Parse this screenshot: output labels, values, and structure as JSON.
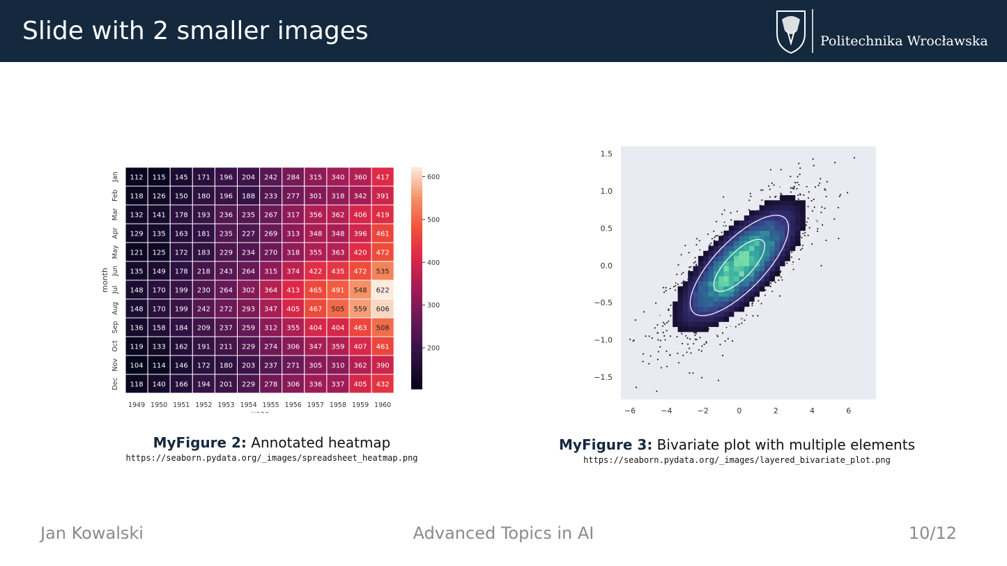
{
  "slide": {
    "title": "Slide with 2 smaller images"
  },
  "logo": {
    "text": "Politechnika Wrocławska"
  },
  "figure2": {
    "caption_label": "MyFigure 2:",
    "caption_text": " Annotated heatmap",
    "url": "https://seaborn.pydata.org/_images/spreadsheet_heatmap.png"
  },
  "figure3": {
    "caption_label": "MyFigure 3:",
    "caption_text": " Bivariate plot with multiple elements",
    "url": "https://seaborn.pydata.org/_images/layered_bivariate_plot.png"
  },
  "footer": {
    "author": "Jan Kowalski",
    "course": "Advanced Topics in AI",
    "page": "10/12"
  },
  "colors": {
    "header_bg": "#14293e",
    "caption_accent": "#14293e"
  },
  "chart_data": [
    {
      "type": "heatmap",
      "xlabel": "year",
      "ylabel": "month",
      "x": [
        "1949",
        "1950",
        "1951",
        "1952",
        "1953",
        "1954",
        "1955",
        "1956",
        "1957",
        "1958",
        "1959",
        "1960"
      ],
      "y": [
        "Jan",
        "Feb",
        "Mar",
        "Apr",
        "May",
        "Jun",
        "Jul",
        "Aug",
        "Sep",
        "Oct",
        "Nov",
        "Dec"
      ],
      "values": [
        [
          112,
          115,
          145,
          171,
          196,
          204,
          242,
          284,
          315,
          340,
          360,
          417
        ],
        [
          118,
          126,
          150,
          180,
          196,
          188,
          233,
          277,
          301,
          318,
          342,
          391
        ],
        [
          132,
          141,
          178,
          193,
          236,
          235,
          267,
          317,
          356,
          362,
          406,
          419
        ],
        [
          129,
          135,
          163,
          181,
          235,
          227,
          269,
          313,
          348,
          348,
          396,
          461
        ],
        [
          121,
          125,
          172,
          183,
          229,
          234,
          270,
          318,
          355,
          363,
          420,
          472
        ],
        [
          135,
          149,
          178,
          218,
          243,
          264,
          315,
          374,
          422,
          435,
          472,
          535
        ],
        [
          148,
          170,
          199,
          230,
          264,
          302,
          364,
          413,
          465,
          491,
          548,
          622
        ],
        [
          148,
          170,
          199,
          242,
          272,
          293,
          347,
          405,
          467,
          505,
          559,
          606
        ],
        [
          136,
          158,
          184,
          209,
          237,
          259,
          312,
          355,
          404,
          404,
          463,
          508
        ],
        [
          119,
          133,
          162,
          191,
          211,
          229,
          274,
          306,
          347,
          359,
          407,
          461
        ],
        [
          104,
          114,
          146,
          172,
          180,
          203,
          237,
          271,
          305,
          310,
          362,
          390
        ],
        [
          118,
          140,
          166,
          194,
          201,
          229,
          278,
          306,
          336,
          337,
          405,
          432
        ]
      ],
      "colorbar_ticks": [
        200,
        300,
        400,
        500,
        600
      ],
      "colorbar_range": [
        104,
        622
      ]
    },
    {
      "type": "scatter",
      "xlim": [
        -6.5,
        7.5
      ],
      "ylim": [
        -1.8,
        1.6
      ],
      "x_ticks": [
        "−6",
        "−4",
        "−2",
        "0",
        "2",
        "4",
        "6"
      ],
      "y_ticks": [
        "1.5",
        "1.0",
        "0.5",
        "0.0",
        "−0.5",
        "−1.0",
        "−1.5"
      ],
      "y_tick_values": [
        1.5,
        1.0,
        0.5,
        0.0,
        -0.5,
        -1.0,
        -1.5
      ],
      "x_tick_values": [
        -6,
        -4,
        -2,
        0,
        2,
        4,
        6
      ],
      "distribution": {
        "mean_x": 0,
        "mean_y": 0,
        "sd_x": 2.0,
        "sd_y": 0.5,
        "correlation": 0.75
      },
      "layers": [
        "scatter points",
        "2D histogram",
        "density contours"
      ]
    }
  ]
}
